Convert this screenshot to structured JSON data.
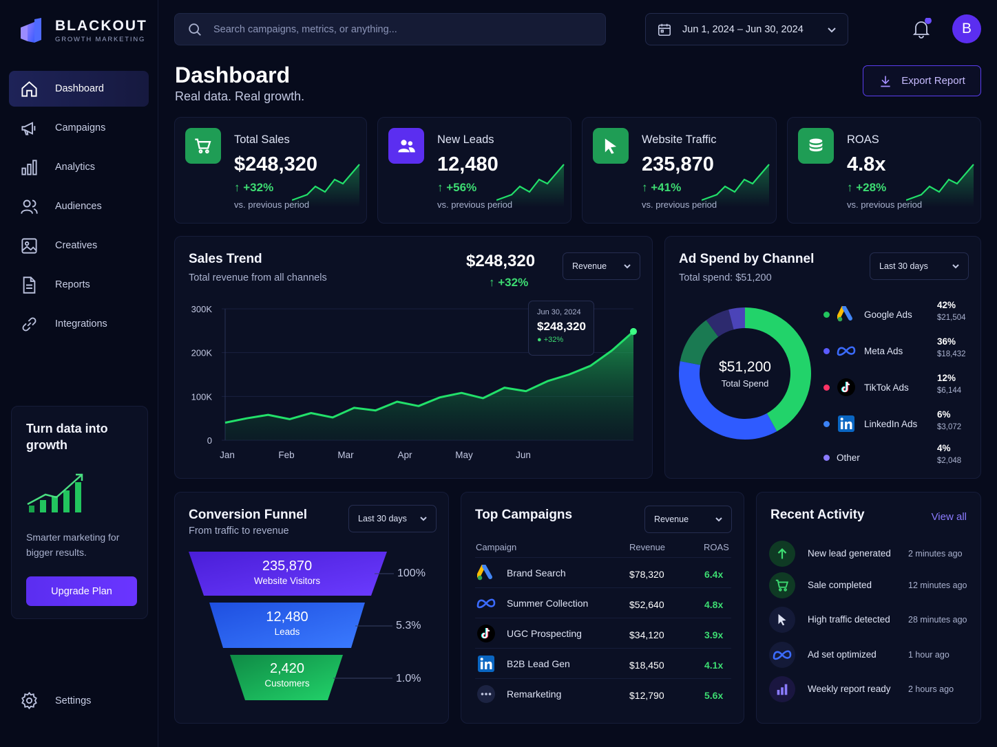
{
  "brand": {
    "name": "BLACKOUT",
    "tagline": "GROWTH MARKETING"
  },
  "nav": [
    {
      "label": "Dashboard",
      "icon": "home-icon",
      "active": true
    },
    {
      "label": "Campaigns",
      "icon": "megaphone-icon"
    },
    {
      "label": "Analytics",
      "icon": "bar-chart-icon"
    },
    {
      "label": "Audiences",
      "icon": "users-icon"
    },
    {
      "label": "Creatives",
      "icon": "image-icon"
    },
    {
      "label": "Reports",
      "icon": "document-icon"
    },
    {
      "label": "Integrations",
      "icon": "link-icon"
    }
  ],
  "promo": {
    "title": "Turn data into growth",
    "text": "Smarter marketing for bigger results.",
    "button": "Upgrade Plan"
  },
  "settings": {
    "label": "Settings"
  },
  "header": {
    "search_placeholder": "Search campaigns, metrics, or anything...",
    "date_range": "Jun 1, 2024 – Jun 30, 2024",
    "avatar_initial": "B"
  },
  "page": {
    "title": "Dashboard",
    "subtitle": "Real data. Real growth.",
    "export_label": "Export Report"
  },
  "kpis": [
    {
      "label": "Total Sales",
      "value": "$248,320",
      "change": "+32%",
      "note": "vs. previous period",
      "icon": "cart-icon",
      "color": "#1f9d55"
    },
    {
      "label": "New Leads",
      "value": "12,480",
      "change": "+56%",
      "note": "vs. previous period",
      "icon": "users-icon",
      "color": "#5b2ef0"
    },
    {
      "label": "Website Traffic",
      "value": "235,870",
      "change": "+41%",
      "note": "vs. previous period",
      "icon": "cursor-icon",
      "color": "#1f9d55"
    },
    {
      "label": "ROAS",
      "value": "4.8x",
      "change": "+28%",
      "note": "vs. previous period",
      "icon": "coins-icon",
      "color": "#1f9d55"
    }
  ],
  "sales_trend": {
    "title": "Sales Trend",
    "subtitle": "Total revenue from all channels",
    "total": "$248,320",
    "change": "+32%",
    "dropdown": "Revenue",
    "tooltip": {
      "date": "Jun 30, 2024",
      "value": "$248,320",
      "change": "+32%"
    }
  },
  "chart_data": {
    "type": "area",
    "x": [
      "Jan",
      "Jan",
      "Jan",
      "Feb",
      "Feb",
      "Feb",
      "Mar",
      "Mar",
      "Mar",
      "Mar",
      "Apr",
      "Apr",
      "Apr",
      "May",
      "May",
      "May",
      "Jun",
      "Jun",
      "Jun",
      "Jun"
    ],
    "categories": [
      "Jan",
      "Feb",
      "Mar",
      "Apr",
      "May",
      "Jun"
    ],
    "values": [
      40000,
      50000,
      58000,
      48000,
      62000,
      52000,
      74000,
      68000,
      88000,
      78000,
      98000,
      108000,
      96000,
      120000,
      112000,
      135000,
      150000,
      170000,
      205000,
      248320
    ],
    "yticks": [
      "300K",
      "200K",
      "100K",
      "0"
    ],
    "ylim": [
      0,
      300000
    ]
  },
  "ad_spend": {
    "title": "Ad Spend by Channel",
    "subtitle": "Total spend: $51,200",
    "dropdown": "Last 30 days",
    "center_value": "$51,200",
    "center_label": "Total Spend",
    "channels": [
      {
        "name": "Google Ads",
        "pct": "42%",
        "amount": "$21,504",
        "share": 42,
        "color": "#22d36a",
        "icon": "google-ads-icon"
      },
      {
        "name": "Meta Ads",
        "pct": "36%",
        "amount": "$18,432",
        "share": 36,
        "color": "#2f5bff",
        "icon": "meta-icon"
      },
      {
        "name": "TikTok Ads",
        "pct": "12%",
        "amount": "$6,144",
        "share": 12,
        "color": "#1a7a52",
        "icon": "tiktok-icon"
      },
      {
        "name": "LinkedIn Ads",
        "pct": "6%",
        "amount": "$3,072",
        "share": 6,
        "color": "#2d2a6e",
        "icon": "linkedin-icon"
      },
      {
        "name": "Other",
        "pct": "4%",
        "amount": "$2,048",
        "share": 4,
        "color": "#4b44b8",
        "icon": ""
      }
    ],
    "dot_colors": [
      "#22c55e",
      "#5b5bff",
      "#ff3366",
      "#3b82f6",
      "#8b7bff"
    ]
  },
  "funnel": {
    "title": "Conversion Funnel",
    "subtitle": "From traffic to revenue",
    "dropdown": "Last 30 days",
    "stages": [
      {
        "value": "235,870",
        "label": "Website Visitors",
        "pct": "100%"
      },
      {
        "value": "12,480",
        "label": "Leads",
        "pct": "5.3%"
      },
      {
        "value": "2,420",
        "label": "Customers",
        "pct": "1.0%"
      }
    ]
  },
  "top_campaigns": {
    "title": "Top Campaigns",
    "dropdown": "Revenue",
    "headers": [
      "Campaign",
      "Revenue",
      "ROAS"
    ],
    "rows": [
      {
        "name": "Brand Search",
        "revenue": "$78,320",
        "roas": "6.4x",
        "icon": "google-ads-icon"
      },
      {
        "name": "Summer Collection",
        "revenue": "$52,640",
        "roas": "4.8x",
        "icon": "meta-icon"
      },
      {
        "name": "UGC Prospecting",
        "revenue": "$34,120",
        "roas": "3.9x",
        "icon": "tiktok-icon"
      },
      {
        "name": "B2B Lead Gen",
        "revenue": "$18,450",
        "roas": "4.1x",
        "icon": "linkedin-icon"
      },
      {
        "name": "Remarketing",
        "revenue": "$12,790",
        "roas": "5.6x",
        "icon": "more-icon"
      }
    ]
  },
  "activity": {
    "title": "Recent Activity",
    "view_all": "View all",
    "items": [
      {
        "text": "New lead generated",
        "time": "2 minutes ago",
        "icon": "arrow-up-icon"
      },
      {
        "text": "Sale completed",
        "time": "12 minutes ago",
        "icon": "cart-icon"
      },
      {
        "text": "High traffic detected",
        "time": "28 minutes ago",
        "icon": "cursor-icon"
      },
      {
        "text": "Ad set optimized",
        "time": "1 hour ago",
        "icon": "meta-icon"
      },
      {
        "text": "Weekly report ready",
        "time": "2 hours ago",
        "icon": "bar-chart-icon"
      }
    ]
  }
}
